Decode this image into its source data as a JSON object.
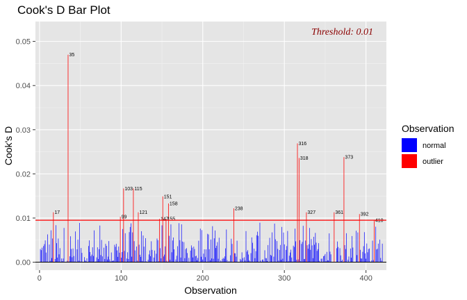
{
  "chart_data": {
    "type": "bar",
    "title": "Cook's D Bar Plot",
    "xlabel": "Observation",
    "ylabel": "Cook's D",
    "xlim": [
      -5,
      425
    ],
    "ylim": [
      -0.0018,
      0.0545
    ],
    "x_ticks": [
      0,
      100,
      200,
      300,
      400
    ],
    "y_ticks": [
      0.0,
      0.01,
      0.02,
      0.03,
      0.04,
      0.05
    ],
    "y_tick_labels": [
      "0.00",
      "0.01",
      "0.02",
      "0.03",
      "0.04",
      "0.05"
    ],
    "threshold": 0.0095,
    "threshold_label": "Threshold: 0.01",
    "legend": {
      "title": "Observation",
      "entries": [
        {
          "label": "normal",
          "color": "#0000ff"
        },
        {
          "label": "outlier",
          "color": "#ff0000"
        }
      ]
    },
    "colors": {
      "normal": "#0000ff",
      "outlier": "#ff0000",
      "threshold_line": "#ff0000",
      "threshold_text": "#8b0000",
      "panel": "#e5e5e5",
      "grid": "#ffffff"
    },
    "outliers": [
      {
        "x": 17,
        "y": 0.0113,
        "label": "17"
      },
      {
        "x": 35,
        "y": 0.047,
        "label": "35"
      },
      {
        "x": 99,
        "y": 0.0103,
        "label": "99"
      },
      {
        "x": 103,
        "y": 0.0167,
        "label": "103"
      },
      {
        "x": 115,
        "y": 0.0167,
        "label": "115"
      },
      {
        "x": 121,
        "y": 0.0113,
        "label": "121"
      },
      {
        "x": 147,
        "y": 0.0098,
        "label": "147"
      },
      {
        "x": 151,
        "y": 0.0149,
        "label": "151"
      },
      {
        "x": 155,
        "y": 0.0098,
        "label": "155"
      },
      {
        "x": 158,
        "y": 0.0133,
        "label": "158"
      },
      {
        "x": 238,
        "y": 0.0122,
        "label": "238"
      },
      {
        "x": 316,
        "y": 0.0269,
        "label": "316"
      },
      {
        "x": 318,
        "y": 0.0236,
        "label": "318"
      },
      {
        "x": 327,
        "y": 0.0113,
        "label": "327"
      },
      {
        "x": 361,
        "y": 0.0113,
        "label": "361"
      },
      {
        "x": 373,
        "y": 0.0238,
        "label": "373"
      },
      {
        "x": 392,
        "y": 0.0109,
        "label": "392"
      },
      {
        "x": 410,
        "y": 0.0095,
        "label": "410"
      }
    ],
    "normal_x_range": [
      1,
      420
    ],
    "normal_max": 0.009
  }
}
